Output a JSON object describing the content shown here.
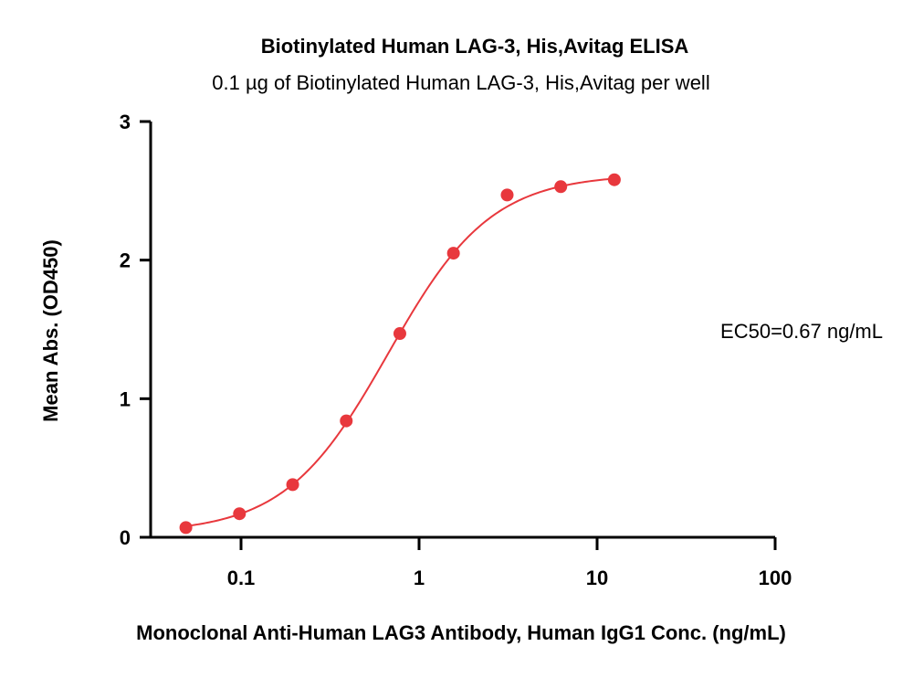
{
  "chart_data": {
    "type": "scatter",
    "title": "Biotinylated Human LAG-3, His,Avitag ELISA",
    "subtitle": "0.1 µg of Biotinylated Human LAG-3, His,Avitag per well",
    "xlabel": "Monoclonal Anti-Human LAG3 Antibody, Human IgG1 Conc. (ng/mL)",
    "ylabel": "Mean Abs. (OD450)",
    "x_scale": "log",
    "xlim": [
      0.03,
      100
    ],
    "ylim": [
      0,
      3
    ],
    "x_ticks": [
      0.1,
      1,
      10,
      100
    ],
    "x_tick_labels": [
      "0.1",
      "1",
      "10",
      "100"
    ],
    "y_ticks": [
      0,
      1,
      2,
      3
    ],
    "y_tick_labels": [
      "0",
      "1",
      "2",
      "3"
    ],
    "grid": false,
    "series": [
      {
        "x": [
          0.049,
          0.098,
          0.195,
          0.39,
          0.78,
          1.56,
          3.125,
          6.25,
          12.5
        ],
        "y": [
          0.07,
          0.17,
          0.38,
          0.84,
          1.47,
          2.05,
          2.47,
          2.53,
          2.58
        ],
        "color": "#e8383d"
      }
    ],
    "fit": {
      "model": "4PL",
      "bottom": 0.03,
      "top": 2.62,
      "ec50": 0.67,
      "hill": 1.5,
      "color": "#e8383d"
    },
    "annotations": [
      {
        "text": "EC50=0.67 ng/mL"
      }
    ]
  }
}
